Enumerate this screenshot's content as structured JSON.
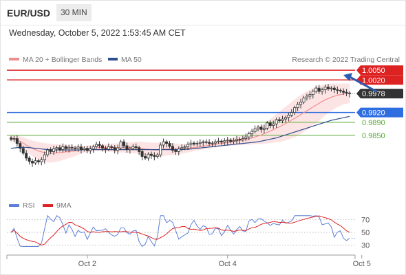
{
  "header": {
    "symbol": "EUR/USD",
    "timeframe": "30 MIN",
    "timestamp": "Wednesday, October 5, 2022 1:53:45 AM CET"
  },
  "colors": {
    "ma20": "#f28c8c",
    "ma50": "#2e4f8f",
    "resistance": "#dd2222",
    "pivot": "#2f6ee0",
    "support": "#55aa33",
    "price_tag": "#333333",
    "band_fill": "#fde4e4",
    "rsi": "#5b7fd6",
    "rsi_ma": "#dd2222",
    "up_candle": "#ffffff",
    "down_candle": "#333333"
  },
  "chart_data": {
    "type": "candlestick",
    "legend": {
      "position": "top-left",
      "items": [
        {
          "name": "MA 20 + Bollinger Bands",
          "color": "#f28c8c"
        },
        {
          "name": "MA 50",
          "color": "#2e4f8f"
        }
      ]
    },
    "credit": "Research © 2022 Trading Central",
    "x_ticks": [
      "Oct 2",
      "Oct 4",
      "Oct 5"
    ],
    "x_tick_index": [
      25,
      71,
      115
    ],
    "y_range": [
      0.967,
      1.0065
    ],
    "levels": [
      {
        "label": "1.0050",
        "value": 1.005,
        "kind": "resistance",
        "tag": true
      },
      {
        "label": "1.0020",
        "value": 1.002,
        "kind": "resistance",
        "tag": true
      },
      {
        "label": "0.9978",
        "value": 0.9978,
        "kind": "last_price",
        "tag": true
      },
      {
        "label": "0.9920",
        "value": 0.992,
        "kind": "pivot",
        "tag": true
      },
      {
        "label": "0.9890",
        "value": 0.989,
        "kind": "support",
        "tag": false
      },
      {
        "label": "0.9850",
        "value": 0.985,
        "kind": "support",
        "tag": false
      }
    ],
    "arrow": {
      "direction": "up",
      "from_index": 119,
      "from_price": 0.998,
      "to_price": 1.005
    },
    "closes": [
      0.9838,
      0.984,
      0.9825,
      0.981,
      0.9795,
      0.978,
      0.977,
      0.9765,
      0.9772,
      0.9768,
      0.9775,
      0.979,
      0.9805,
      0.98,
      0.9808,
      0.9812,
      0.9806,
      0.9815,
      0.9809,
      0.9813,
      0.9811,
      0.9809,
      0.9814,
      0.9806,
      0.981,
      0.9803,
      0.9808,
      0.9815,
      0.9822,
      0.9818,
      0.981,
      0.9807,
      0.9815,
      0.9812,
      0.9804,
      0.9811,
      0.983,
      0.9818,
      0.9806,
      0.981,
      0.9815,
      0.9812,
      0.98,
      0.9785,
      0.978,
      0.9792,
      0.9788,
      0.9785,
      0.979,
      0.982,
      0.983,
      0.9825,
      0.9816,
      0.9804,
      0.98,
      0.9808,
      0.9812,
      0.9815,
      0.9822,
      0.9826,
      0.9823,
      0.9825,
      0.9828,
      0.983,
      0.9828,
      0.9825,
      0.9826,
      0.983,
      0.9832,
      0.9829,
      0.9833,
      0.9835,
      0.9831,
      0.9834,
      0.9838,
      0.9836,
      0.984,
      0.9845,
      0.9855,
      0.9862,
      0.987,
      0.9875,
      0.9868,
      0.9872,
      0.9888,
      0.988,
      0.9885,
      0.9898,
      0.9895,
      0.99,
      0.9905,
      0.9912,
      0.992,
      0.9935,
      0.9945,
      0.9952,
      0.9965,
      0.997,
      0.9975,
      0.9985,
      0.9995,
      0.9985,
      0.999,
      0.9998,
      0.9993,
      0.9995,
      0.999,
      0.9988,
      0.9986,
      0.9982,
      0.998,
      0.9978
    ],
    "ma20": [
      0.9842,
      0.984,
      0.9836,
      0.9831,
      0.9826,
      0.982,
      0.9815,
      0.981,
      0.9806,
      0.9802,
      0.9799,
      0.9797,
      0.9796,
      0.9795,
      0.9795,
      0.9796,
      0.9797,
      0.9798,
      0.9799,
      0.98,
      0.9801,
      0.9802,
      0.9804,
      0.9806,
      0.9807,
      0.9808,
      0.9809,
      0.981,
      0.9811,
      0.9812,
      0.9812,
      0.9812,
      0.9812,
      0.9812,
      0.9812,
      0.9812,
      0.9812,
      0.9812,
      0.9812,
      0.9812,
      0.9812,
      0.9812,
      0.9811,
      0.981,
      0.9808,
      0.9807,
      0.9806,
      0.9805,
      0.9805,
      0.9806,
      0.9807,
      0.9808,
      0.9808,
      0.9808,
      0.9808,
      0.9808,
      0.9808,
      0.9809,
      0.981,
      0.9811,
      0.9812,
      0.9813,
      0.9815,
      0.9816,
      0.9818,
      0.9819,
      0.9821,
      0.9822,
      0.9824,
      0.9825,
      0.9826,
      0.9828,
      0.9829,
      0.9831,
      0.9832,
      0.9834,
      0.9835,
      0.9837,
      0.9839,
      0.9842,
      0.9845,
      0.9848,
      0.9851,
      0.9855,
      0.9859,
      0.9863,
      0.9867,
      0.9872,
      0.9876,
      0.9881,
      0.9886,
      0.9891,
      0.9897,
      0.9902,
      0.9908,
      0.9914,
      0.992,
      0.9925,
      0.9931,
      0.9937,
      0.9943,
      0.9948,
      0.9954,
      0.9959,
      0.9963,
      0.9967,
      0.997,
      0.9973,
      0.9975,
      0.9977,
      0.9978,
      0.9979
    ],
    "band_width": [
      0.001,
      0.0012,
      0.0014,
      0.0016,
      0.0018,
      0.002,
      0.0022,
      0.0024,
      0.0026,
      0.0027,
      0.0028,
      0.0029,
      0.0029,
      0.0029,
      0.0028,
      0.0027,
      0.0026,
      0.0024,
      0.0022,
      0.002,
      0.0018,
      0.0016,
      0.0014,
      0.0012,
      0.0011,
      0.001,
      0.001,
      0.001,
      0.001,
      0.0011,
      0.0011,
      0.0012,
      0.0012,
      0.0013,
      0.0013,
      0.0014,
      0.0015,
      0.0015,
      0.0016,
      0.0016,
      0.0017,
      0.0018,
      0.0019,
      0.002,
      0.0021,
      0.0021,
      0.0022,
      0.0022,
      0.0022,
      0.0022,
      0.0021,
      0.002,
      0.0019,
      0.0018,
      0.0017,
      0.0016,
      0.0015,
      0.0014,
      0.0013,
      0.0012,
      0.0011,
      0.001,
      0.001,
      0.001,
      0.001,
      0.001,
      0.001,
      0.001,
      0.001,
      0.001,
      0.001,
      0.0011,
      0.0011,
      0.0012,
      0.0013,
      0.0014,
      0.0015,
      0.0016,
      0.0018,
      0.002,
      0.0022,
      0.0025,
      0.0028,
      0.0031,
      0.0034,
      0.0037,
      0.004,
      0.0043,
      0.0046,
      0.0049,
      0.0052,
      0.0054,
      0.0056,
      0.0058,
      0.0059,
      0.006,
      0.006,
      0.006,
      0.0059,
      0.0058,
      0.0056,
      0.0054,
      0.0051,
      0.0048,
      0.0045,
      0.0042,
      0.0039,
      0.0036,
      0.0034,
      0.0032,
      0.0031,
      0.003
    ],
    "ma50": [
      0.981,
      0.9811,
      0.9812,
      0.9813,
      0.9813,
      0.9813,
      0.9812,
      0.9811,
      0.981,
      0.9809,
      0.9808,
      0.9807,
      0.9806,
      0.9806,
      0.9805,
      0.9805,
      0.9805,
      0.9805,
      0.9805,
      0.9805,
      0.9805,
      0.9805,
      0.9805,
      0.9805,
      0.9806,
      0.9806,
      0.9806,
      0.9806,
      0.9806,
      0.9806,
      0.9806,
      0.9806,
      0.9806,
      0.9806,
      0.9806,
      0.9806,
      0.9806,
      0.9806,
      0.9806,
      0.9806,
      0.9806,
      0.9806,
      0.9806,
      0.9806,
      0.9806,
      0.9806,
      0.9806,
      0.9806,
      0.9806,
      0.9806,
      0.9806,
      0.9806,
      0.9806,
      0.9806,
      0.9806,
      0.9806,
      0.9806,
      0.9807,
      0.9807,
      0.9808,
      0.9809,
      0.981,
      0.9811,
      0.9812,
      0.9813,
      0.9814,
      0.9815,
      0.9816,
      0.9817,
      0.9818,
      0.9819,
      0.982,
      0.9821,
      0.9822,
      0.9823,
      0.9824,
      0.9825,
      0.9826,
      0.9827,
      0.9828,
      0.9829,
      0.983,
      0.9832,
      0.9834,
      0.9836,
      0.9838,
      0.984,
      0.9842,
      0.9845,
      0.9848,
      0.9851,
      0.9854,
      0.9857,
      0.986,
      0.9863,
      0.9866,
      0.9869,
      0.9872,
      0.9875,
      0.9878,
      0.9881,
      0.9884,
      0.9887,
      0.989,
      0.9893,
      0.9896,
      0.9898,
      0.99,
      0.9902,
      0.9904,
      0.9906,
      0.9908
    ],
    "rsi": {
      "legend": [
        {
          "name": "RSI",
          "color": "#5b7fd6"
        },
        {
          "name": "9MA",
          "color": "#dd2222"
        }
      ],
      "y_ticks": [
        70,
        50,
        30
      ],
      "range": [
        20,
        80
      ]
    }
  }
}
